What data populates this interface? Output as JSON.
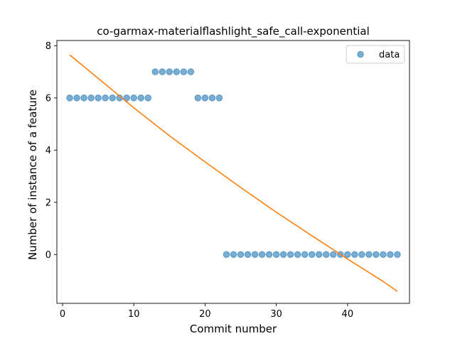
{
  "chart_data": {
    "type": "scatter",
    "title": "co-garmax-materialflashlight_safe_call-exponential",
    "xlabel": "Commit number",
    "ylabel": "Number of instance of a feature",
    "xlim": [
      -0.8,
      48.7
    ],
    "ylim": [
      -1.87,
      8.2
    ],
    "xticks": [
      0,
      10,
      20,
      30,
      40
    ],
    "yticks": [
      0,
      2,
      4,
      6,
      8
    ],
    "grid": false,
    "legend_position": "top-right",
    "series": [
      {
        "name": "data",
        "kind": "scatter",
        "color": "#1f77b4",
        "x": [
          1,
          2,
          3,
          4,
          5,
          6,
          7,
          8,
          9,
          10,
          11,
          12,
          13,
          14,
          15,
          16,
          17,
          18,
          19,
          20,
          21,
          22,
          23,
          24,
          25,
          26,
          27,
          28,
          29,
          30,
          31,
          32,
          33,
          34,
          35,
          36,
          37,
          38,
          39,
          40,
          41,
          42,
          43,
          44,
          45,
          46,
          47
        ],
        "y": [
          6,
          6,
          6,
          6,
          6,
          6,
          6,
          6,
          6,
          6,
          6,
          6,
          7,
          7,
          7,
          7,
          7,
          7,
          6,
          6,
          6,
          6,
          0,
          0,
          0,
          0,
          0,
          0,
          0,
          0,
          0,
          0,
          0,
          0,
          0,
          0,
          0,
          0,
          0,
          0,
          0,
          0,
          0,
          0,
          0,
          0,
          0
        ]
      },
      {
        "kind": "line",
        "color": "#ff7f0e",
        "x": [
          1,
          5,
          10,
          15,
          20,
          25,
          30,
          35,
          40,
          45,
          47
        ],
        "y": [
          7.65,
          6.75,
          5.62,
          4.55,
          3.55,
          2.57,
          1.62,
          0.72,
          -0.17,
          -1.03,
          -1.41
        ]
      }
    ]
  }
}
